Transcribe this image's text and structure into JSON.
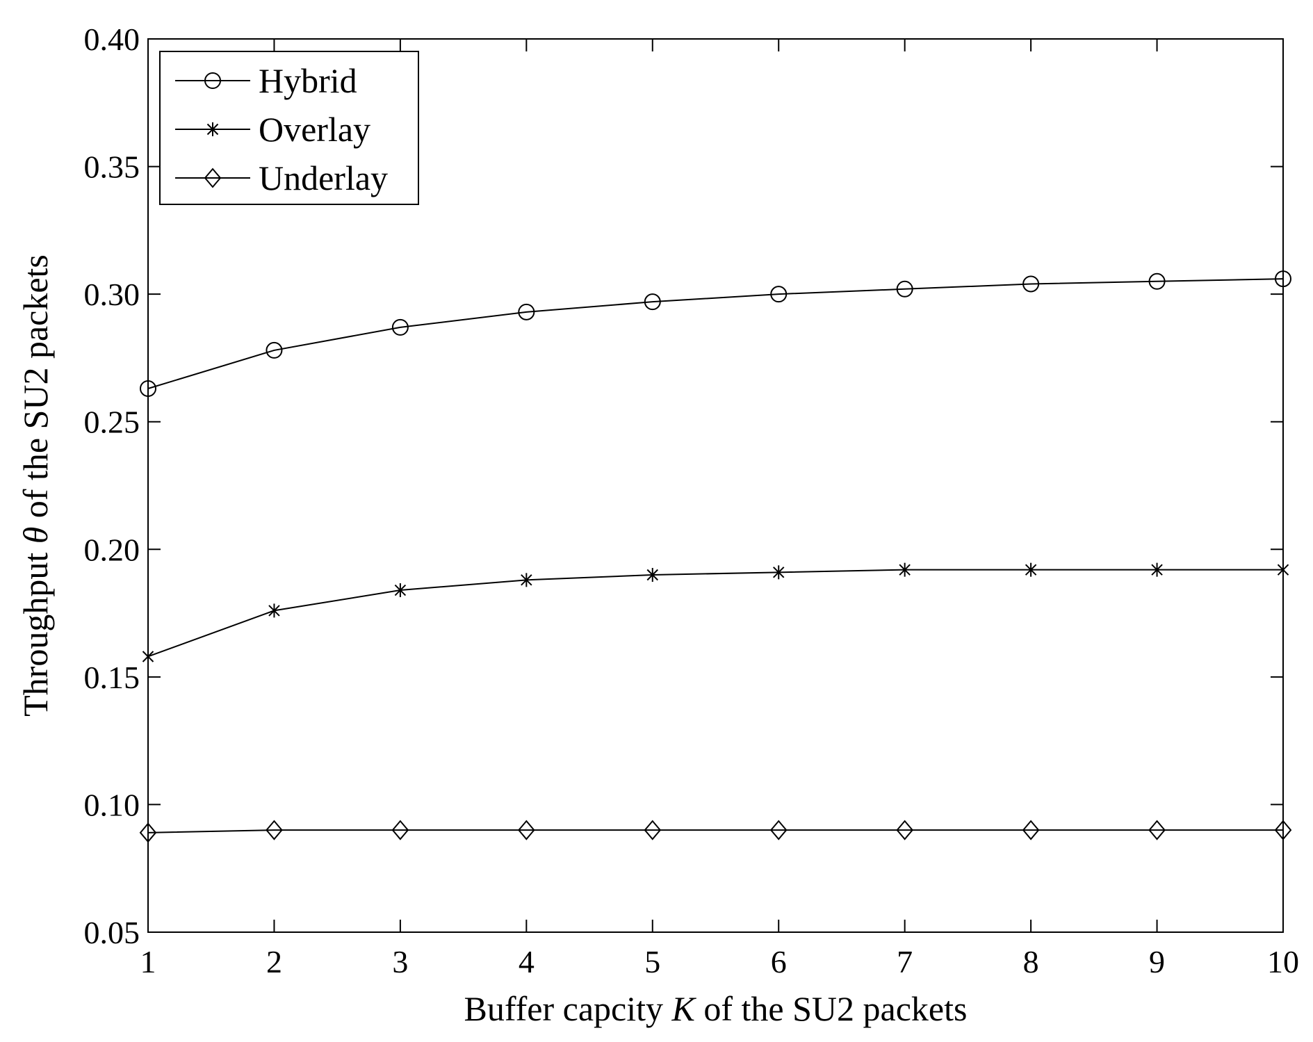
{
  "chart_data": {
    "type": "line",
    "xlabel": {
      "prefix": "Buffer capcity ",
      "symbol": "K",
      "suffix": " of the SU2 packets"
    },
    "ylabel": {
      "prefix": "Throughput ",
      "symbol": "θ",
      "suffix": " of the SU2 packets"
    },
    "xlim": [
      1,
      10
    ],
    "ylim": [
      0.05,
      0.4
    ],
    "x_ticks": [
      "1",
      "2",
      "3",
      "4",
      "5",
      "6",
      "7",
      "8",
      "9",
      "10"
    ],
    "y_ticks": [
      "0.05",
      "0.10",
      "0.15",
      "0.20",
      "0.25",
      "0.30",
      "0.35",
      "0.40"
    ],
    "grid": false,
    "legend_position": "top-left",
    "x": [
      1,
      2,
      3,
      4,
      5,
      6,
      7,
      8,
      9,
      10
    ],
    "series": [
      {
        "name": "Hybrid",
        "marker": "circle",
        "color": "#000000",
        "values": [
          0.263,
          0.278,
          0.287,
          0.293,
          0.297,
          0.3,
          0.302,
          0.304,
          0.305,
          0.306
        ]
      },
      {
        "name": "Overlay",
        "marker": "asterisk",
        "color": "#000000",
        "values": [
          0.158,
          0.176,
          0.184,
          0.188,
          0.19,
          0.191,
          0.192,
          0.192,
          0.192,
          0.192
        ]
      },
      {
        "name": "Underlay",
        "marker": "diamond",
        "color": "#000000",
        "values": [
          0.089,
          0.09,
          0.09,
          0.09,
          0.09,
          0.09,
          0.09,
          0.09,
          0.09,
          0.09
        ]
      }
    ]
  }
}
